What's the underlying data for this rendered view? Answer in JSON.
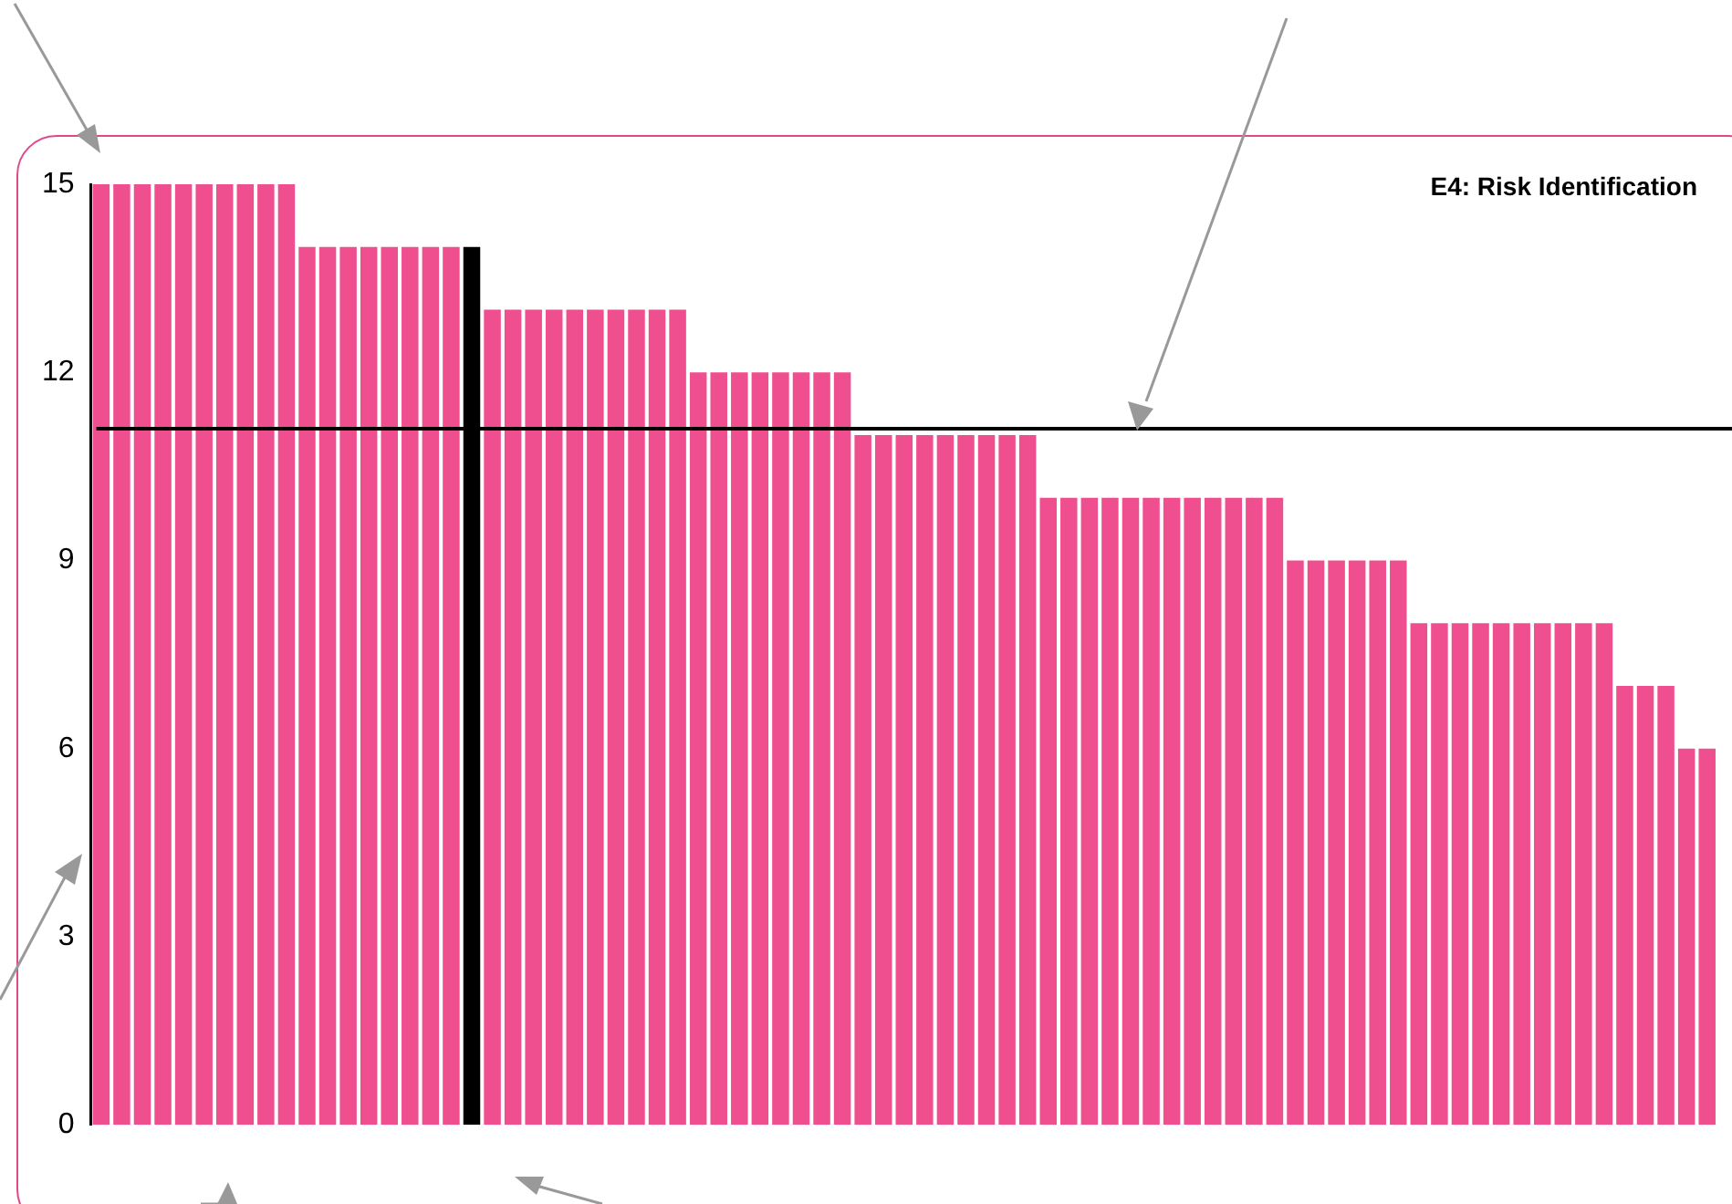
{
  "chart_data": {
    "type": "bar",
    "title": "E4: Risk Identification",
    "categories": [
      null,
      null,
      null,
      null,
      null,
      null,
      null,
      null,
      null,
      null,
      null,
      null,
      null,
      null,
      null,
      null,
      null,
      null,
      null,
      null,
      null,
      null,
      null,
      null,
      null,
      null,
      null,
      null,
      null,
      null,
      null,
      null,
      null,
      null,
      null,
      null,
      null,
      null,
      null,
      null,
      null,
      null,
      null,
      null,
      null,
      null,
      null,
      null,
      null,
      null,
      null,
      null,
      null,
      null,
      null,
      null,
      null,
      null,
      null,
      null,
      null,
      null,
      null,
      null,
      null,
      null,
      null,
      null,
      null,
      null,
      null,
      null,
      null,
      null,
      null,
      null,
      null,
      null,
      null
    ],
    "values": [
      15,
      15,
      15,
      15,
      15,
      15,
      15,
      15,
      15,
      15,
      14,
      14,
      14,
      14,
      14,
      14,
      14,
      14,
      14,
      13,
      13,
      13,
      13,
      13,
      13,
      13,
      13,
      13,
      13,
      12,
      12,
      12,
      12,
      12,
      12,
      12,
      12,
      11,
      11,
      11,
      11,
      11,
      11,
      11,
      11,
      11,
      10,
      10,
      10,
      10,
      10,
      10,
      10,
      10,
      10,
      10,
      10,
      10,
      9,
      9,
      9,
      9,
      9,
      9,
      8,
      8,
      8,
      8,
      8,
      8,
      8,
      8,
      8,
      8,
      7,
      7,
      7,
      6,
      6
    ],
    "colors": [
      "#f04f8f",
      "#f04f8f",
      "#f04f8f",
      "#f04f8f",
      "#f04f8f",
      "#f04f8f",
      "#f04f8f",
      "#f04f8f",
      "#f04f8f",
      "#f04f8f",
      "#f04f8f",
      "#f04f8f",
      "#f04f8f",
      "#f04f8f",
      "#f04f8f",
      "#f04f8f",
      "#f04f8f",
      "#f04f8f",
      "#000000",
      "#f04f8f",
      "#f04f8f",
      "#f04f8f",
      "#f04f8f",
      "#f04f8f",
      "#f04f8f",
      "#f04f8f",
      "#f04f8f",
      "#f04f8f",
      "#f04f8f",
      "#f04f8f",
      "#f04f8f",
      "#f04f8f",
      "#f04f8f",
      "#f04f8f",
      "#f04f8f",
      "#f04f8f",
      "#f04f8f",
      "#f04f8f",
      "#f04f8f",
      "#f04f8f",
      "#f04f8f",
      "#f04f8f",
      "#f04f8f",
      "#f04f8f",
      "#f04f8f",
      "#f04f8f",
      "#f04f8f",
      "#f04f8f",
      "#f04f8f",
      "#f04f8f",
      "#f04f8f",
      "#f04f8f",
      "#f04f8f",
      "#f04f8f",
      "#f04f8f",
      "#f04f8f",
      "#f04f8f",
      "#f04f8f",
      "#f04f8f",
      "#f04f8f",
      "#f04f8f",
      "#f04f8f",
      "#f04f8f",
      "#f04f8f",
      "#f04f8f",
      "#f04f8f",
      "#f04f8f",
      "#f04f8f",
      "#f04f8f",
      "#f04f8f",
      "#f04f8f",
      "#f04f8f",
      "#f04f8f",
      "#f04f8f",
      "#f04f8f",
      "#f04f8f",
      "#f04f8f",
      "#f04f8f",
      "#f04f8f"
    ],
    "ylim": [
      0,
      15
    ],
    "yticks": [
      0,
      3,
      6,
      9,
      12,
      15
    ],
    "grid": false,
    "legend": false,
    "ref_lines": [
      {
        "axis": "y",
        "value": 11.1,
        "color": "#000000"
      }
    ]
  }
}
